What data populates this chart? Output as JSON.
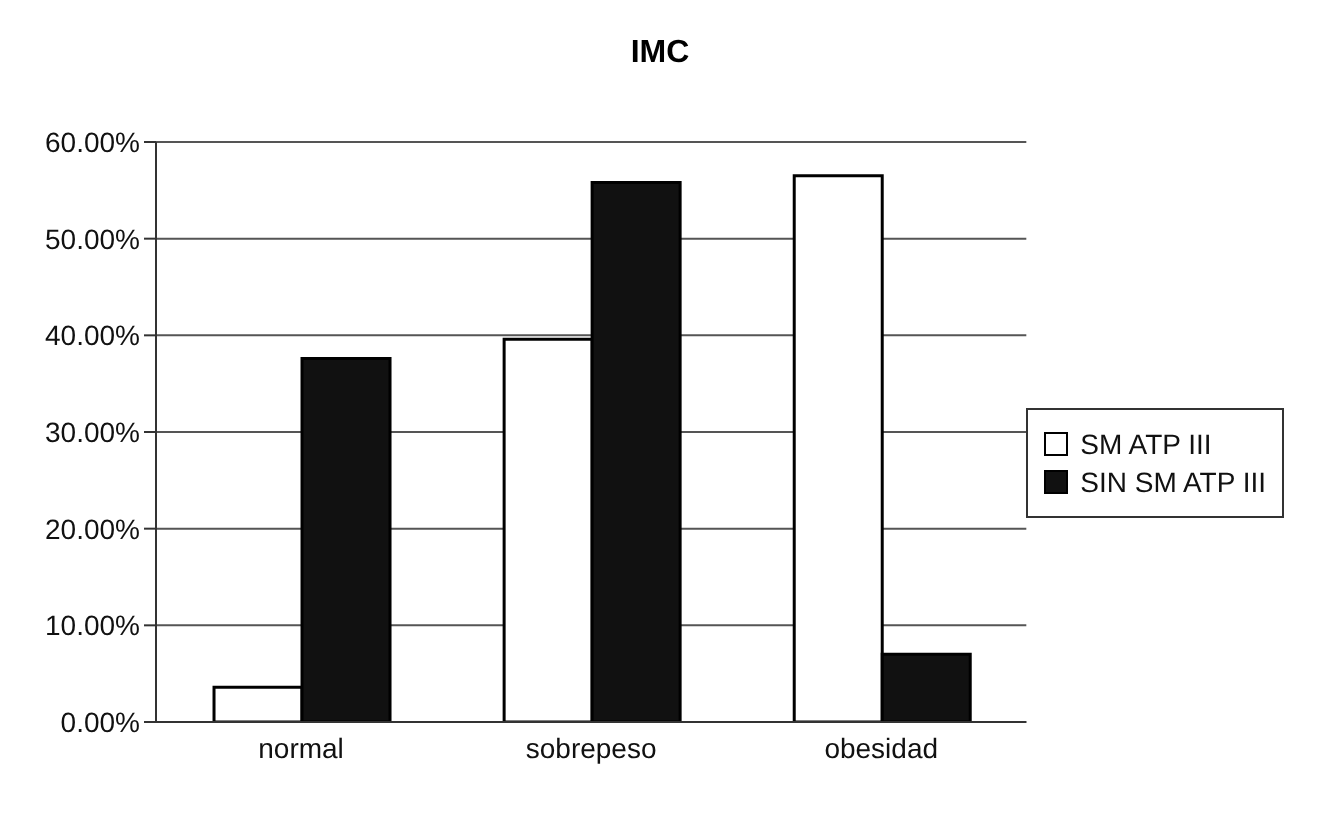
{
  "chart_data": {
    "type": "bar",
    "title": "IMC",
    "categories": [
      "normal",
      "sobrepeso",
      "obesidad"
    ],
    "series": [
      {
        "name": "SM ATP III",
        "color": "#ffffff",
        "values": [
          3.6,
          39.6,
          56.5
        ]
      },
      {
        "name": "SIN SM ATP III",
        "color": "#111111",
        "values": [
          37.6,
          55.8,
          7.0
        ]
      }
    ],
    "ylim": [
      0,
      60
    ],
    "yticks": [
      {
        "value": 0,
        "label": "0.00%"
      },
      {
        "value": 10,
        "label": "10.00%"
      },
      {
        "value": 20,
        "label": "20.00%"
      },
      {
        "value": 30,
        "label": "30.00%"
      },
      {
        "value": 40,
        "label": "40.00%"
      },
      {
        "value": 50,
        "label": "50.00%"
      },
      {
        "value": 60,
        "label": "60.00%"
      }
    ],
    "grid": "y",
    "legend": "right"
  }
}
